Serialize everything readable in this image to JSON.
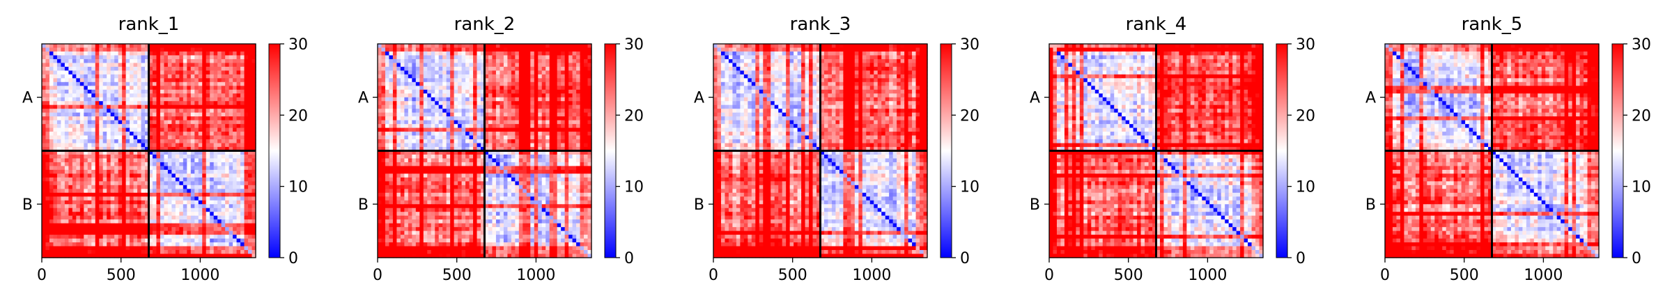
{
  "chart_data": {
    "type": "heatmap",
    "colormap": {
      "low": "#0000ff",
      "mid": "#ffffff",
      "high": "#ff0000"
    },
    "clim": [
      0,
      30
    ],
    "colorbar_ticks": [
      "0",
      "10",
      "20",
      "30"
    ],
    "axis_range": [
      0,
      1350
    ],
    "x_ticks": [
      {
        "value": 0,
        "label": "0"
      },
      {
        "value": 500,
        "label": "500"
      },
      {
        "value": 1000,
        "label": "1000"
      }
    ],
    "chain_boundary": 675,
    "chains": [
      {
        "label": "A",
        "center": 337
      },
      {
        "label": "B",
        "center": 1012
      }
    ],
    "grid": false,
    "panels": [
      {
        "title": "rank_1",
        "seed": 11
      },
      {
        "title": "rank_2",
        "seed": 23
      },
      {
        "title": "rank_3",
        "seed": 37
      },
      {
        "title": "rank_4",
        "seed": 41
      },
      {
        "title": "rank_5",
        "seed": 59
      }
    ]
  }
}
